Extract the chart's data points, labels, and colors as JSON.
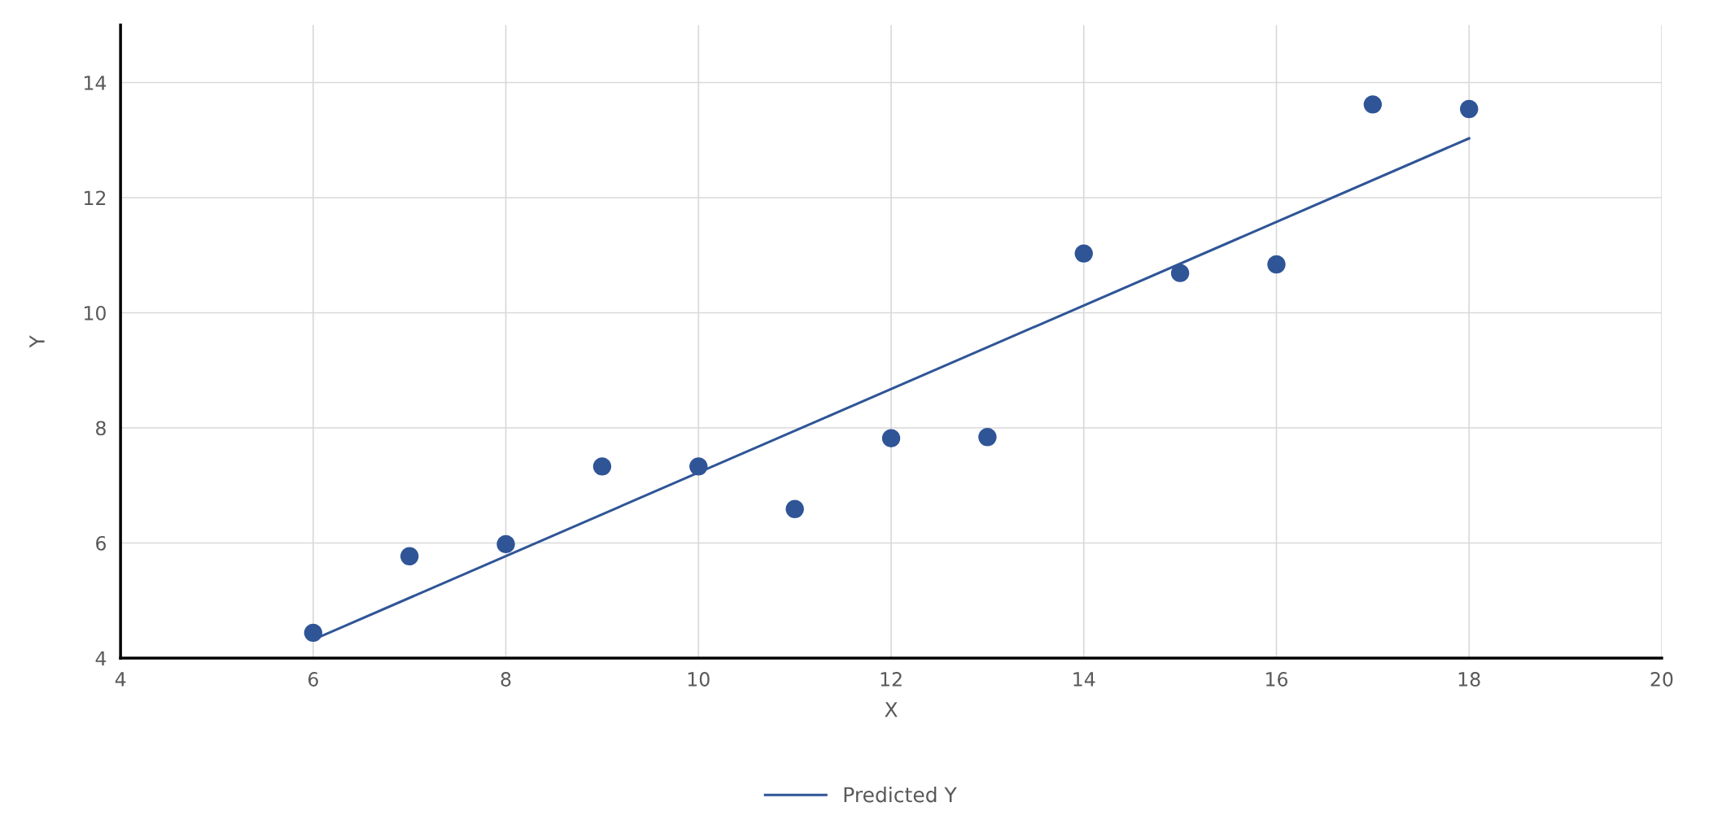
{
  "chart_data": {
    "type": "scatter",
    "xlabel": "X",
    "ylabel": "Y",
    "xlim": [
      4,
      20
    ],
    "xticks": [
      4,
      6,
      8,
      10,
      12,
      14,
      16,
      18,
      20
    ],
    "ylim": [
      4,
      15
    ],
    "yticks": [
      4,
      6,
      8,
      10,
      12,
      14
    ],
    "grid": true,
    "legend": "bottom",
    "series": [
      {
        "marker": "circle",
        "color": "#2f5597",
        "x": [
          6,
          7,
          8,
          9,
          10,
          11,
          12,
          13,
          14,
          15,
          16,
          17,
          18
        ],
        "values": [
          4.44,
          5.77,
          5.98,
          7.33,
          7.33,
          6.59,
          7.82,
          7.84,
          11.03,
          10.69,
          10.84,
          13.62,
          13.54
        ]
      },
      {
        "type": "line",
        "marker": "none",
        "name": "Predicted Y",
        "color": "#2f5597",
        "x": [
          6,
          18
        ],
        "values": [
          4.32,
          13.03
        ]
      }
    ]
  }
}
